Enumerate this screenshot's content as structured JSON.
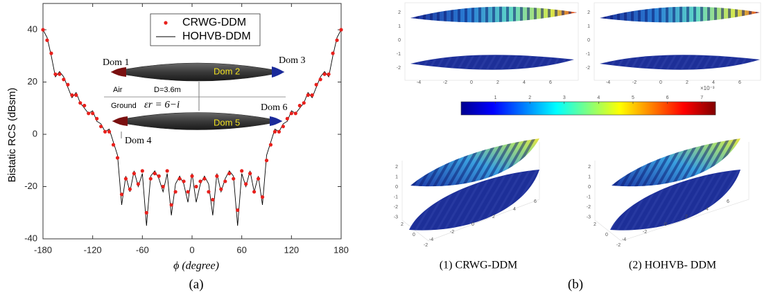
{
  "chart_data": {
    "type": "line",
    "x_label": "ϕ (degree)",
    "y_label": "Bistatic RCS (dBsm)",
    "xlim": [
      -180,
      180
    ],
    "ylim": [
      -40,
      40
    ],
    "xticks": [
      -180,
      -120,
      -60,
      0,
      60,
      120,
      180
    ],
    "yticks": [
      -40,
      -20,
      0,
      20,
      40
    ],
    "legend": "upper center",
    "x": [
      -180,
      -175,
      -170,
      -165,
      -160,
      -155,
      -150,
      -145,
      -140,
      -135,
      -130,
      -125,
      -120,
      -115,
      -110,
      -105,
      -100,
      -95,
      -90,
      -85,
      -80,
      -75,
      -70,
      -65,
      -60,
      -55,
      -50,
      -45,
      -40,
      -35,
      -30,
      -25,
      -20,
      -15,
      -10,
      -5,
      0,
      5,
      10,
      15,
      20,
      25,
      30,
      35,
      40,
      45,
      50,
      55,
      60,
      65,
      70,
      75,
      80,
      85,
      90,
      95,
      100,
      105,
      110,
      115,
      120,
      125,
      130,
      135,
      140,
      145,
      150,
      155,
      160,
      165,
      170,
      175,
      180
    ],
    "series": [
      {
        "name": "CRWG-DDM",
        "color": "#e8201c",
        "style": "marker",
        "values": [
          40,
          36,
          31,
          23,
          23,
          21,
          19,
          15,
          15,
          12,
          11,
          8,
          8,
          6,
          3,
          1,
          1,
          -4,
          -9,
          -23,
          -17,
          -21,
          -15,
          -19,
          -14,
          -30,
          -17,
          -15,
          -16,
          -20,
          -14,
          -27,
          -22,
          -17,
          -18,
          -22,
          -16,
          -20,
          -18,
          -17,
          -22,
          -25,
          -16,
          -21,
          -18,
          -15,
          -17,
          -29,
          -14,
          -19,
          -15,
          -22,
          -17,
          -24,
          -10,
          -4,
          1,
          1,
          3,
          6,
          8,
          8,
          11,
          12,
          15,
          15,
          19,
          21,
          23,
          23,
          31,
          36,
          40
        ]
      },
      {
        "name": "HOHVB-DDM",
        "color": "#000000",
        "style": "line",
        "values": [
          40,
          37,
          30,
          22,
          24,
          22,
          18,
          14,
          16,
          12,
          10,
          8,
          9,
          5,
          4,
          1,
          2,
          -3,
          -8,
          -27,
          -16,
          -22,
          -14,
          -20,
          -15,
          -35,
          -16,
          -14,
          -17,
          -22,
          -15,
          -31,
          -19,
          -16,
          -19,
          -26,
          -15,
          -26,
          -19,
          -16,
          -19,
          -31,
          -15,
          -22,
          -17,
          -14,
          -16,
          -35,
          -15,
          -20,
          -14,
          -22,
          -16,
          -27,
          -8,
          -3,
          2,
          1,
          4,
          5,
          9,
          8,
          10,
          12,
          16,
          14,
          18,
          22,
          24,
          22,
          30,
          37,
          40
        ]
      }
    ],
    "annotations": [
      "Dom 1",
      "Dom 2",
      "Dom 3",
      "Air",
      "D=3.6m",
      "Ground",
      "εr = 6−i",
      "Dom 6",
      "Dom 5",
      "Dom 4"
    ]
  },
  "panel_b": {
    "top_xticks": [
      -4,
      -2,
      0,
      2,
      4,
      6
    ],
    "top_yticks": [
      2,
      1,
      0,
      -1,
      -2
    ],
    "iso_zticks": [
      2,
      1,
      0,
      -1,
      -2,
      -3
    ],
    "iso_xticks": [
      -4,
      -2,
      0,
      2,
      4,
      6
    ],
    "iso_yticks": [
      2,
      0,
      -2
    ],
    "colorbar": {
      "lim": [
        0,
        7.4
      ],
      "ticks": [
        1,
        2,
        3,
        4,
        5,
        6,
        7
      ],
      "exponent": "×10⁻³"
    },
    "captions": [
      "(1) CRWG-DDM",
      "(2) HOHVB- DDM"
    ]
  },
  "figure_labels": [
    "(a)",
    "(b)"
  ]
}
